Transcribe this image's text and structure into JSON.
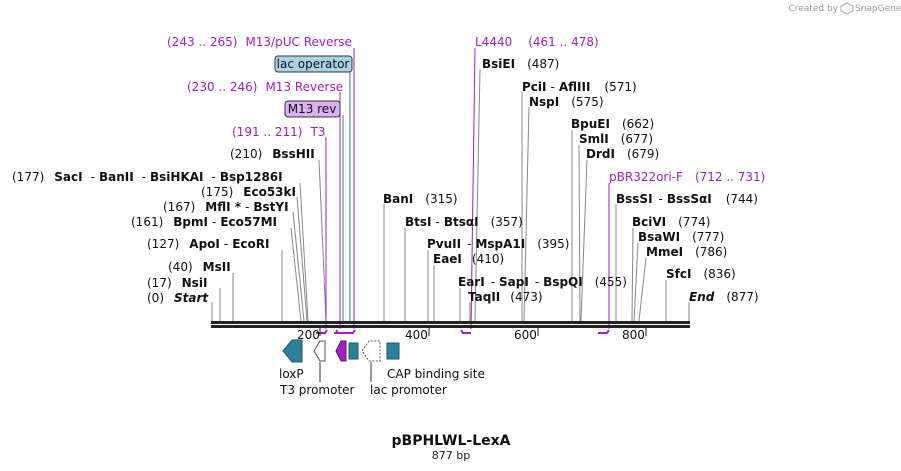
{
  "credit": {
    "text": "Created by",
    "brand": "SnapGene",
    "brand_icon": "snapgene-logo-icon"
  },
  "title": "pBPHLWL-LexA",
  "length_label": "877 bp",
  "ruler": {
    "ticks": [
      "200",
      "400",
      "600",
      "800"
    ]
  },
  "colors": {
    "purple": "#a020c0",
    "feature_teal": "#2e7f9a",
    "lac_operator_fill": "#a9d3e3",
    "m13rev_fill": "#dcb0ee"
  },
  "sites": {
    "start": {
      "num": "(0)",
      "name": "Start"
    },
    "end": {
      "num": "(877)",
      "name": "End"
    },
    "nsii": {
      "num": "(17)",
      "name": "NsiI"
    },
    "msii": {
      "num": "(40)",
      "name": "MsII"
    },
    "apoi": {
      "num": "(127)",
      "names": [
        "ApoI",
        "EcoRI"
      ]
    },
    "bpmi": {
      "num": "(161)",
      "names": [
        "BpmI",
        "Eco57MI"
      ]
    },
    "mfli": {
      "num": "(167)",
      "names": [
        "MflI *",
        "BstYI"
      ]
    },
    "eco53ki": {
      "num": "(175)",
      "name": "Eco53kI"
    },
    "saci": {
      "num": "(177)",
      "names": [
        "SacI",
        "BanII",
        "BsiHKAI",
        "Bsp1286I"
      ]
    },
    "bsshii": {
      "num": "(210)",
      "name": "BssHII"
    },
    "bani": {
      "num": "(315)",
      "name": "BanI"
    },
    "bsti": {
      "num": "(357)",
      "names": [
        "BtsI",
        "BtsαI"
      ]
    },
    "pvuii": {
      "num": "(395)",
      "names": [
        "PvuII",
        "MspA1I"
      ]
    },
    "eaei": {
      "num": "(410)",
      "name": "EaeI"
    },
    "eari": {
      "num": "(455)",
      "names": [
        "EarI",
        "SapI",
        "BspQI"
      ]
    },
    "taqii": {
      "num": "(473)",
      "name": "TaqII"
    },
    "bsiei": {
      "num": "(487)",
      "name": "BsiEI"
    },
    "pcii": {
      "num": "(571)",
      "names": [
        "PciI",
        "AflIII"
      ]
    },
    "nspi": {
      "num": "(575)",
      "name": "NspI"
    },
    "bpuei": {
      "num": "(662)",
      "name": "BpuEI"
    },
    "smli": {
      "num": "(677)",
      "name": "SmlI"
    },
    "drdi": {
      "num": "(679)",
      "name": "DrdI"
    },
    "bsssi": {
      "num": "(744)",
      "names": [
        "BssSI",
        "BssSαI"
      ]
    },
    "bcivi": {
      "num": "(774)",
      "name": "BciVI"
    },
    "bsawi": {
      "num": "(777)",
      "name": "BsaWI"
    },
    "mmei": {
      "num": "(786)",
      "name": "MmeI"
    },
    "sfci": {
      "num": "(836)",
      "name": "SfcI"
    }
  },
  "primers": {
    "m13puc": {
      "range": "(243 .. 265)",
      "name": "M13/pUC Reverse"
    },
    "m13rev": {
      "range": "(230 .. 246)",
      "name": "M13 Reverse"
    },
    "t3": {
      "range": "(191 .. 211)",
      "name": "T3"
    },
    "l4440": {
      "name": "L4440",
      "range": "(461 .. 478)"
    },
    "pbr322": {
      "name": "pBR322ori-F",
      "range": "(712 .. 731)"
    }
  },
  "boxed": {
    "lac_operator": "lac operator",
    "m13_rev": "M13 rev"
  },
  "features": {
    "loxp": "loxP",
    "t3_promoter": "T3 promoter",
    "lac_promoter": "lac promoter",
    "cap_site": "CAP binding site"
  }
}
